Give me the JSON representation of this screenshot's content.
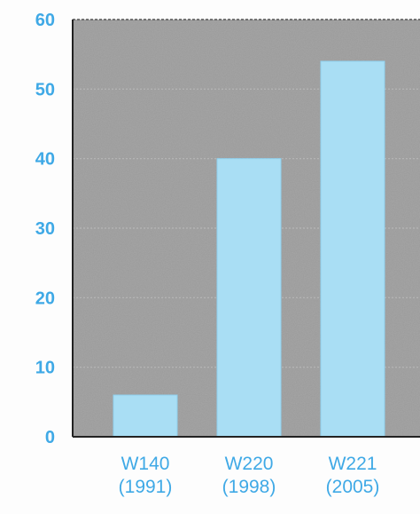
{
  "chart_data": {
    "type": "bar",
    "categories": [
      "W140\n(1991)",
      "W220\n(1998)",
      "W221\n(2005)"
    ],
    "category_lines": [
      [
        "W140",
        "(1991)"
      ],
      [
        "W220",
        "(1998)"
      ],
      [
        "W221",
        "(2005)"
      ]
    ],
    "values": [
      6,
      40,
      54
    ],
    "title": "",
    "xlabel": "",
    "ylabel": "",
    "ylim": [
      0,
      60
    ],
    "yticks": [
      0,
      10,
      20,
      30,
      40,
      50,
      60
    ],
    "grid": true,
    "legend": "none"
  },
  "colors": {
    "plot_background": "#9a9a9a",
    "bar_fill": "#a9def4",
    "bar_edge": "#8fd0ee",
    "tick_text": "#3fa9e6",
    "axis": "#222222",
    "grid": "#bdbdbd",
    "page_background": "#fdfdfd"
  }
}
